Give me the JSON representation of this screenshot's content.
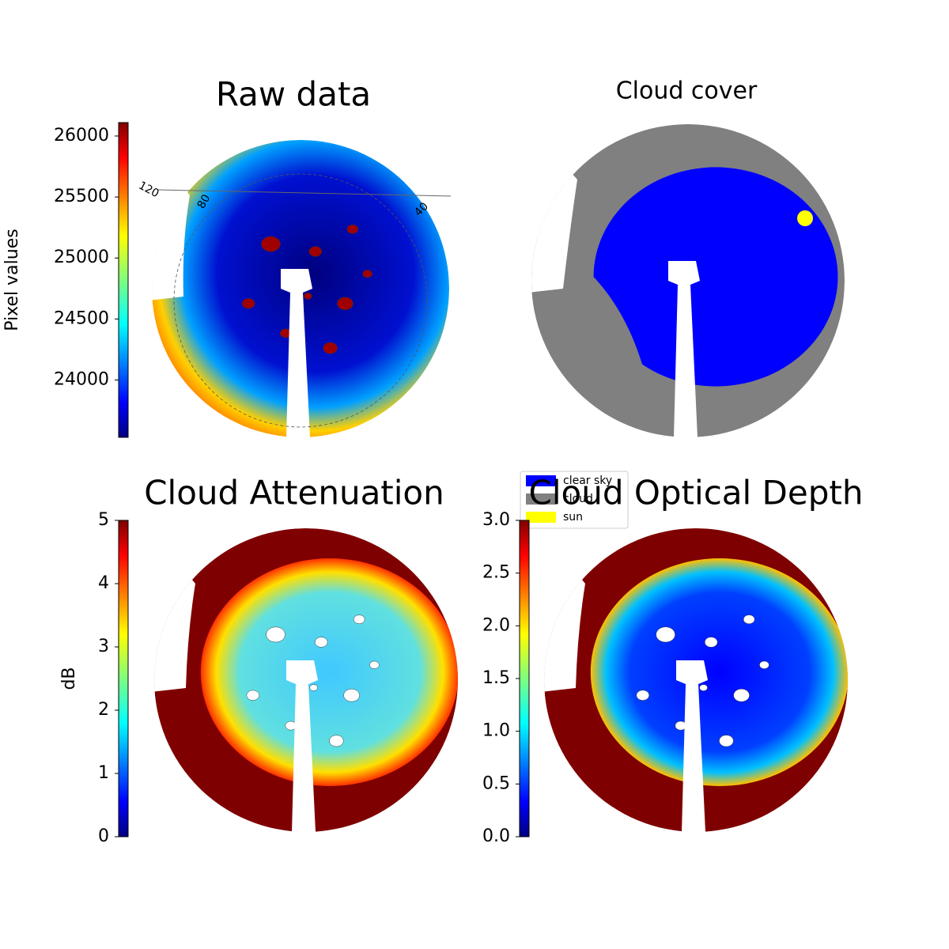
{
  "chart_data": [
    {
      "type": "image",
      "title": "Raw data",
      "colorbar": {
        "label": "Pixel values",
        "lim": [
          23530,
          26110
        ],
        "ticks": [
          24000,
          24500,
          25000,
          25500,
          26000
        ]
      },
      "annotations": [
        "120",
        "80",
        "40"
      ]
    },
    {
      "type": "image",
      "title": "Cloud cover",
      "legend": [
        {
          "name": "clear sky",
          "color": "#0000ff"
        },
        {
          "name": "cloud",
          "color": "#808080"
        },
        {
          "name": "sun",
          "color": "#ffff00"
        }
      ]
    },
    {
      "type": "image",
      "title": "Cloud Attenuation",
      "colorbar": {
        "label": "dB",
        "lim": [
          0,
          5
        ],
        "ticks": [
          0,
          1,
          2,
          3,
          4,
          5
        ]
      }
    },
    {
      "type": "image",
      "title": "Cloud Optical Depth",
      "colorbar": {
        "lim": [
          0,
          3
        ],
        "ticks": [
          {
            "value": 0,
            "label": "0.0"
          },
          {
            "value": 0.5,
            "label": "0.5"
          },
          {
            "value": 1,
            "label": "1.0"
          },
          {
            "value": 1.5,
            "label": "1.5"
          },
          {
            "value": 2,
            "label": "2.0"
          },
          {
            "value": 2.5,
            "label": "2.5"
          },
          {
            "value": 3,
            "label": "3.0"
          }
        ]
      }
    }
  ]
}
